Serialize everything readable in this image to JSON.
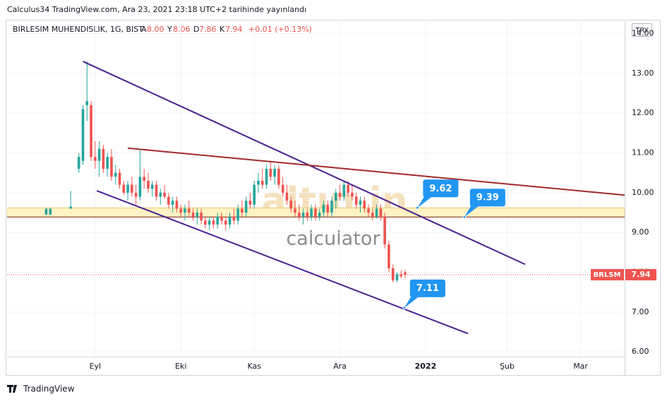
{
  "header": {
    "published": "Calculus34 TradingView.com, Ara 23, 2021 23:18 UTC+2 tarihinde yayınlandı",
    "symbol": "BIRLESIM MUHENDISLIK, 1G, BIST",
    "ohlc": [
      {
        "key": "A",
        "value": "8.00"
      },
      {
        "key": "Y",
        "value": "8.06"
      },
      {
        "key": "D",
        "value": "7.86"
      },
      {
        "key": "K",
        "value": "7.94"
      }
    ],
    "change": "+0.01 (+0.13%)",
    "currency": "TRY"
  },
  "watermark": {
    "logo": "altın.in",
    "text": "calculator"
  },
  "footer": "TradingView",
  "chart_data": {
    "type": "candlestick",
    "x": [
      9,
      10,
      15,
      17,
      18,
      19,
      20,
      21,
      22,
      23,
      24,
      25,
      26,
      27,
      28,
      29,
      30,
      31,
      32,
      33,
      34,
      35,
      36,
      37,
      38,
      39,
      40,
      41,
      42,
      43,
      44,
      45,
      46,
      47,
      48,
      49,
      50,
      51,
      52,
      53,
      54,
      55,
      56,
      57,
      58,
      59,
      60,
      61,
      62,
      63,
      64,
      65,
      66,
      67,
      68,
      69,
      70,
      71,
      72,
      73,
      74,
      75,
      76,
      77,
      78,
      79,
      80,
      81,
      82,
      83,
      84,
      85,
      86,
      87,
      88,
      89,
      90,
      91,
      92,
      93,
      94,
      95,
      96,
      97
    ],
    "candles": [
      [
        9.45,
        9.6,
        9.45,
        9.6
      ],
      [
        9.45,
        9.6,
        9.45,
        9.6
      ],
      [
        9.6,
        10.05,
        9.6,
        9.65
      ],
      [
        10.6,
        11.0,
        10.5,
        10.9
      ],
      [
        10.8,
        12.2,
        10.7,
        12.1
      ],
      [
        12.2,
        13.3,
        11.8,
        12.3
      ],
      [
        12.2,
        12.3,
        10.8,
        10.9
      ],
      [
        10.9,
        11.3,
        10.6,
        10.8
      ],
      [
        10.8,
        11.3,
        10.4,
        11.1
      ],
      [
        11.1,
        11.2,
        10.5,
        10.6
      ],
      [
        10.6,
        11.0,
        10.4,
        10.9
      ],
      [
        10.9,
        11.1,
        10.3,
        10.4
      ],
      [
        10.4,
        10.7,
        10.2,
        10.5
      ],
      [
        10.5,
        10.6,
        10.1,
        10.2
      ],
      [
        10.2,
        10.3,
        9.95,
        10.0
      ],
      [
        10.0,
        10.3,
        9.8,
        10.2
      ],
      [
        10.2,
        10.4,
        9.9,
        10.0
      ],
      [
        10.0,
        10.2,
        9.7,
        9.9
      ],
      [
        9.9,
        11.1,
        9.8,
        10.4
      ],
      [
        10.4,
        10.6,
        10.1,
        10.3
      ],
      [
        10.3,
        10.5,
        10.0,
        10.1
      ],
      [
        10.1,
        10.3,
        9.9,
        10.2
      ],
      [
        10.2,
        10.3,
        9.8,
        9.9
      ],
      [
        9.9,
        10.1,
        9.7,
        10.0
      ],
      [
        10.0,
        10.2,
        9.85,
        9.9
      ],
      [
        9.9,
        10.0,
        9.6,
        9.7
      ],
      [
        9.7,
        9.9,
        9.5,
        9.8
      ],
      [
        9.8,
        9.9,
        9.5,
        9.6
      ],
      [
        9.6,
        9.7,
        9.4,
        9.5
      ],
      [
        9.5,
        9.7,
        9.3,
        9.6
      ],
      [
        9.6,
        9.8,
        9.4,
        9.5
      ],
      [
        9.5,
        9.6,
        9.3,
        9.4
      ],
      [
        9.4,
        9.6,
        9.2,
        9.5
      ],
      [
        9.5,
        9.6,
        9.2,
        9.3
      ],
      [
        9.3,
        9.4,
        9.1,
        9.2
      ],
      [
        9.2,
        9.4,
        9.05,
        9.3
      ],
      [
        9.3,
        9.4,
        9.1,
        9.2
      ],
      [
        9.2,
        9.5,
        9.1,
        9.4
      ],
      [
        9.4,
        9.5,
        9.2,
        9.3
      ],
      [
        9.3,
        9.4,
        9.05,
        9.2
      ],
      [
        9.2,
        9.5,
        9.1,
        9.4
      ],
      [
        9.4,
        9.6,
        9.2,
        9.3
      ],
      [
        9.3,
        9.7,
        9.2,
        9.6
      ],
      [
        9.6,
        9.8,
        9.4,
        9.5
      ],
      [
        9.5,
        9.9,
        9.4,
        9.8
      ],
      [
        9.8,
        10.0,
        9.6,
        9.7
      ],
      [
        9.7,
        10.3,
        9.6,
        10.2
      ],
      [
        10.2,
        10.5,
        10.0,
        10.3
      ],
      [
        10.3,
        10.6,
        10.1,
        10.2
      ],
      [
        10.2,
        10.7,
        10.1,
        10.6
      ],
      [
        10.6,
        10.8,
        10.3,
        10.4
      ],
      [
        10.4,
        10.7,
        10.2,
        10.6
      ],
      [
        10.6,
        10.7,
        10.1,
        10.2
      ],
      [
        10.2,
        10.4,
        9.9,
        10.0
      ],
      [
        10.0,
        10.2,
        9.7,
        9.8
      ],
      [
        9.8,
        9.9,
        9.5,
        9.6
      ],
      [
        9.6,
        9.8,
        9.4,
        9.5
      ],
      [
        9.5,
        9.7,
        9.3,
        9.4
      ],
      [
        9.4,
        9.6,
        9.2,
        9.5
      ],
      [
        9.5,
        9.6,
        9.3,
        9.4
      ],
      [
        9.4,
        9.7,
        9.3,
        9.6
      ],
      [
        9.6,
        9.7,
        9.3,
        9.4
      ],
      [
        9.4,
        9.6,
        9.3,
        9.5
      ],
      [
        9.5,
        9.8,
        9.4,
        9.7
      ],
      [
        9.7,
        9.8,
        9.4,
        9.5
      ],
      [
        9.5,
        9.9,
        9.4,
        9.8
      ],
      [
        9.8,
        10.1,
        9.6,
        10.0
      ],
      [
        10.0,
        10.2,
        9.8,
        9.9
      ],
      [
        9.9,
        10.3,
        9.8,
        10.2
      ],
      [
        10.2,
        10.3,
        9.9,
        10.0
      ],
      [
        10.0,
        10.2,
        9.8,
        9.9
      ],
      [
        9.9,
        10.0,
        9.6,
        9.7
      ],
      [
        9.7,
        9.9,
        9.5,
        9.8
      ],
      [
        9.8,
        9.9,
        9.5,
        9.6
      ],
      [
        9.6,
        9.7,
        9.4,
        9.5
      ],
      [
        9.5,
        9.6,
        9.3,
        9.4
      ],
      [
        9.4,
        9.7,
        9.35,
        9.6
      ],
      [
        9.6,
        9.7,
        9.3,
        9.4
      ],
      [
        9.4,
        9.5,
        8.6,
        8.7
      ],
      [
        8.7,
        8.8,
        8.0,
        8.1
      ],
      [
        8.1,
        8.2,
        7.75,
        7.8
      ],
      [
        7.8,
        8.0,
        7.75,
        7.95
      ],
      [
        7.95,
        8.05,
        7.85,
        7.9
      ],
      [
        8.0,
        8.06,
        7.86,
        7.94
      ]
    ],
    "up_color": "#26a69a",
    "down_color": "#ef5350",
    "xlim": [
      -0.6,
      150.8
    ],
    "xticks": [
      {
        "value": 21,
        "label": "Eyl"
      },
      {
        "value": 42,
        "label": "Eki"
      },
      {
        "value": 60,
        "label": "Kas"
      },
      {
        "value": 81,
        "label": "Ara"
      },
      {
        "value": 102,
        "label": "2022"
      },
      {
        "value": 122,
        "label": "Şub"
      },
      {
        "value": 140,
        "label": "Mar"
      }
    ],
    "ylim": [
      5.88,
      14.31
    ],
    "yticks": [
      {
        "value": 6,
        "label": "6.00"
      },
      {
        "value": 7,
        "label": "7.00"
      },
      {
        "value": 8,
        "label": "8.00"
      },
      {
        "value": 9,
        "label": "9.00"
      },
      {
        "value": 10,
        "label": "10.00"
      },
      {
        "value": 11,
        "label": "11.00"
      },
      {
        "value": 12,
        "label": "12.00"
      },
      {
        "value": 13,
        "label": "13.00"
      },
      {
        "value": 14,
        "label": "14.00"
      }
    ],
    "grid": true,
    "trendlines": [
      {
        "from": [
          18,
          13.3
        ],
        "to": [
          126.4,
          8.2
        ],
        "color": "#4a2191"
      },
      {
        "from": [
          21.4,
          10.05
        ],
        "to": [
          112.4,
          6.46
        ],
        "color": "#4a2191"
      },
      {
        "from": [
          29,
          11.12
        ],
        "to": [
          150.8,
          9.94
        ],
        "color": "#a32a2a"
      }
    ],
    "zone": {
      "low": 9.39,
      "high": 9.62,
      "color": "#fff3c4"
    },
    "zone_line": 9.39,
    "callouts": [
      {
        "x": 100,
        "value": 9.62
      },
      {
        "x": 111.5,
        "value": 9.39
      },
      {
        "x": 96.8,
        "value": 7.11
      }
    ],
    "last_price": {
      "name": "BRLSM",
      "value": 7.94,
      "label": "7.94",
      "color": "#ef5350"
    }
  }
}
